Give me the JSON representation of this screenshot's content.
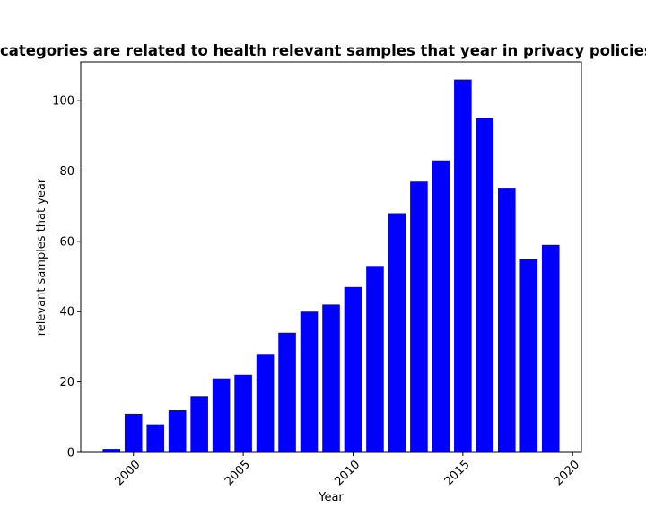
{
  "chart_data": {
    "type": "bar",
    "title": "categories are related to health relevant samples that year in privacy policies",
    "xlabel": "Year",
    "ylabel": "relevant samples that year",
    "x": [
      1999,
      2000,
      2001,
      2002,
      2003,
      2004,
      2005,
      2006,
      2007,
      2008,
      2009,
      2010,
      2011,
      2012,
      2013,
      2014,
      2015,
      2016,
      2017,
      2018,
      2019
    ],
    "values": [
      1,
      11,
      8,
      12,
      16,
      21,
      22,
      28,
      34,
      40,
      42,
      47,
      53,
      68,
      77,
      83,
      106,
      95,
      75,
      55,
      59
    ],
    "xlim": [
      1997.6,
      2020.4
    ],
    "ylim": [
      0,
      111
    ],
    "xticks": [
      "2000",
      "2005",
      "2010",
      "2015",
      "2020"
    ],
    "yticks": [
      "0",
      "20",
      "40",
      "60",
      "80",
      "100"
    ],
    "bar_color": "#0000ff",
    "grid": false
  }
}
